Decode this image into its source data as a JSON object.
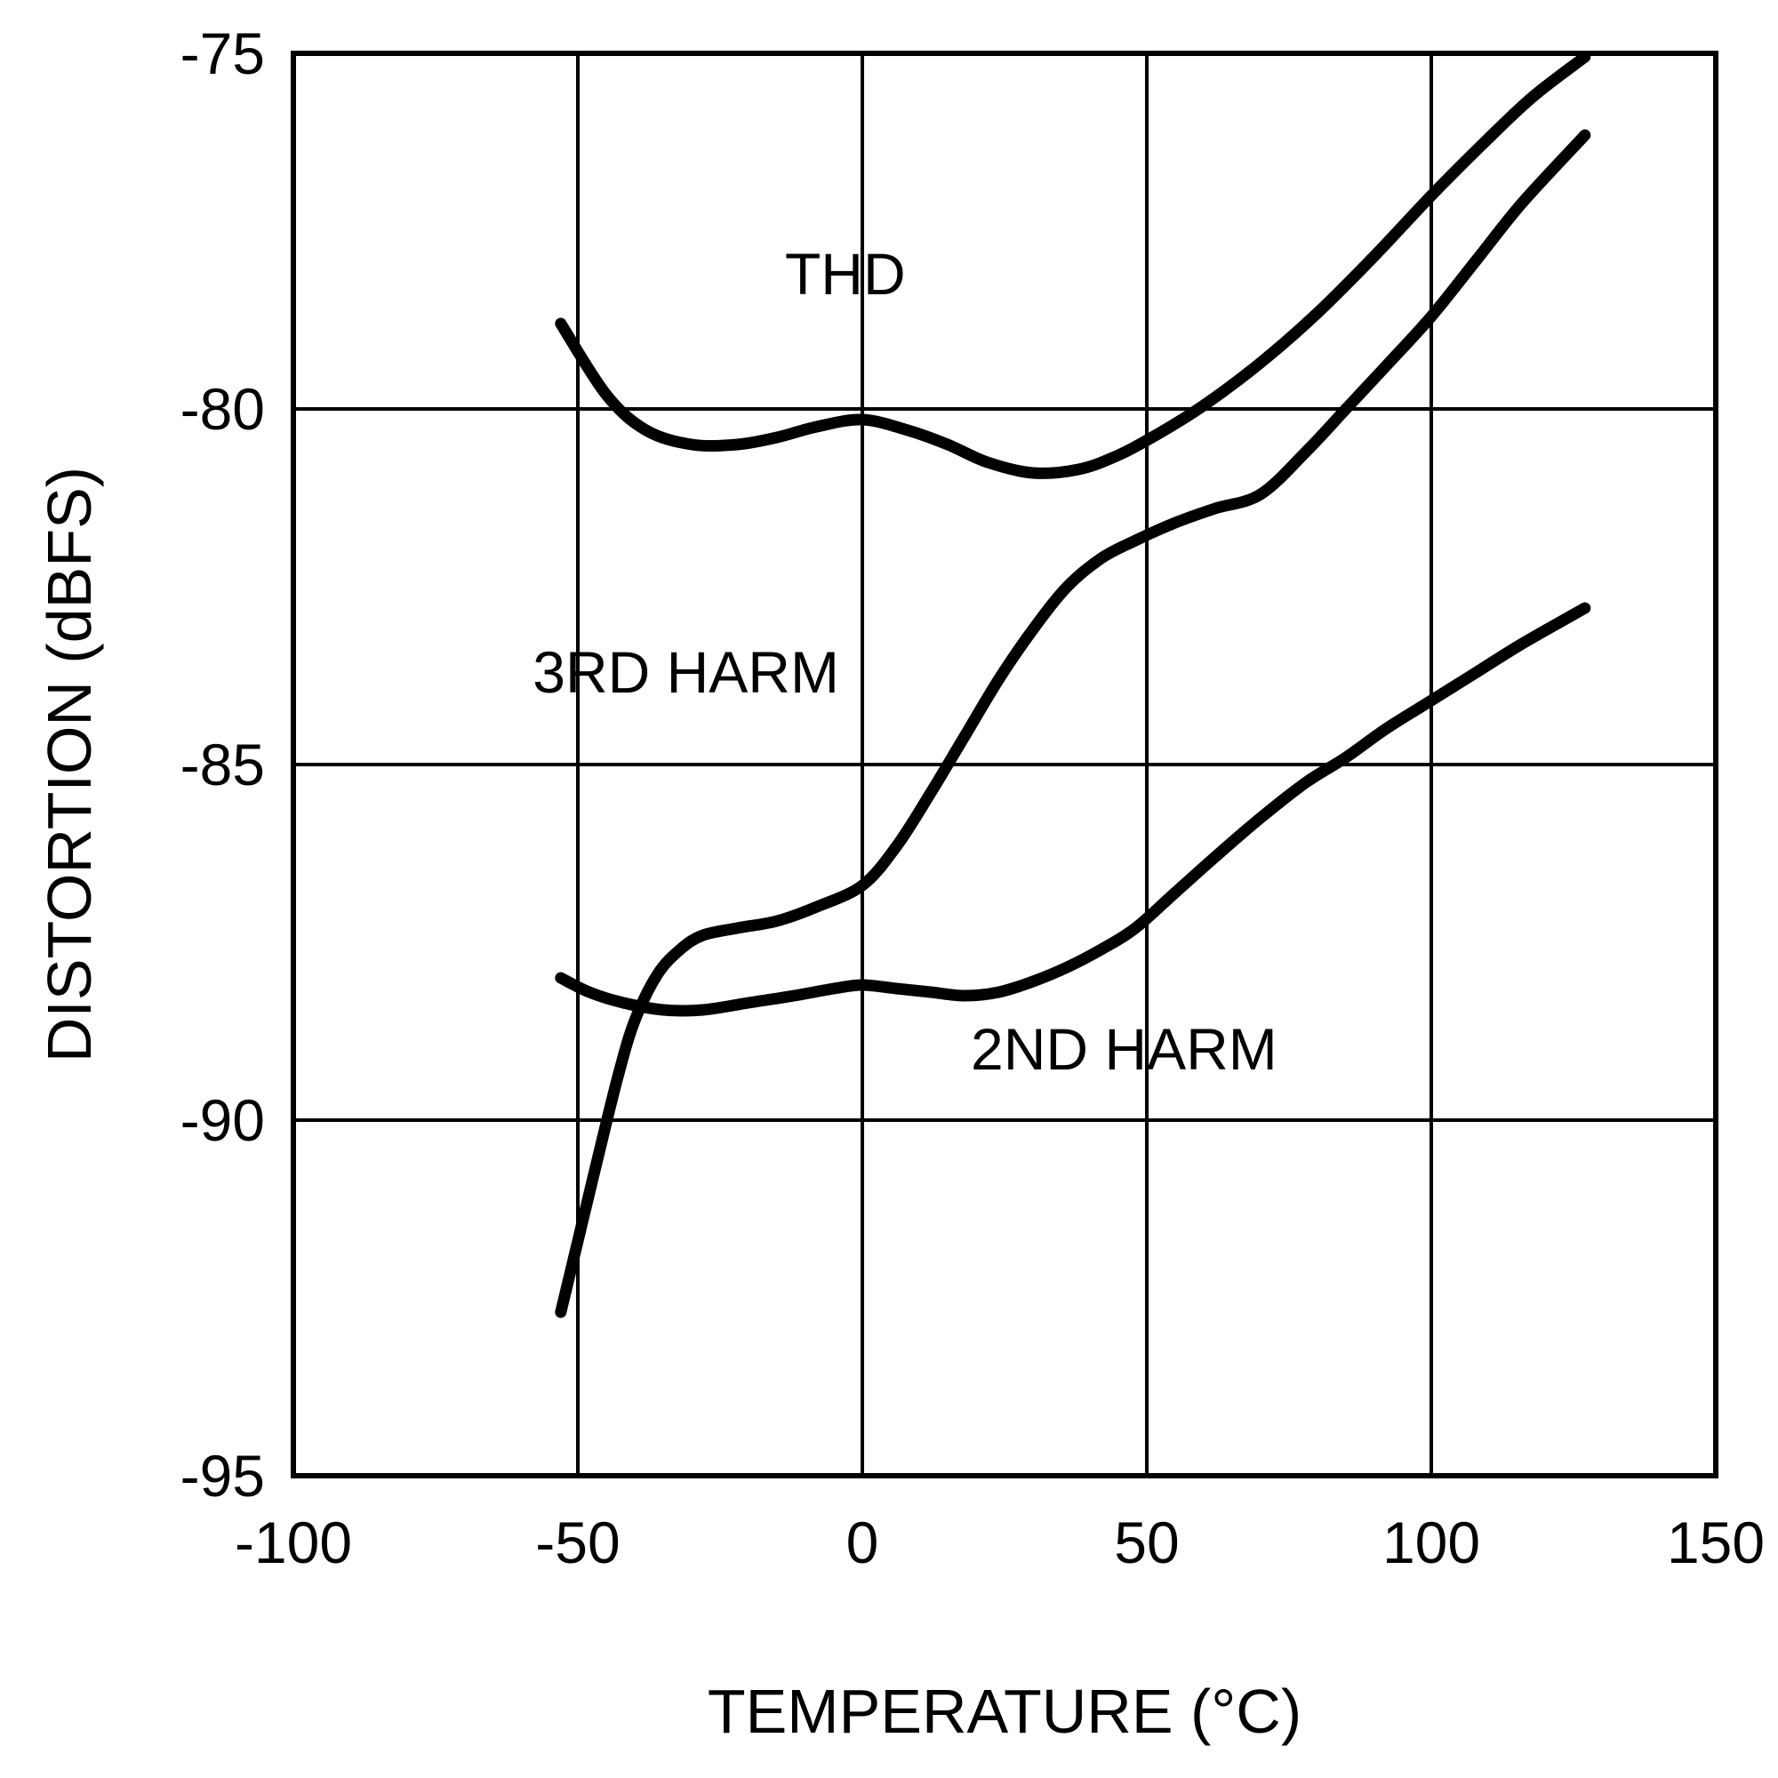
{
  "chart_data": {
    "type": "line",
    "title": "",
    "xlabel": "TEMPERATURE (°C)",
    "ylabel": "DISTORTION (dBFS)",
    "xlim": [
      -100,
      150
    ],
    "ylim": [
      -95,
      -75
    ],
    "x_ticks": [
      -100,
      -50,
      0,
      50,
      100,
      150
    ],
    "y_ticks": [
      -95,
      -90,
      -85,
      -80,
      -75
    ],
    "grid": true,
    "legend_position": "none (inline curve labels)",
    "line_color": "#000000",
    "background_color": "#ffffff",
    "series": [
      {
        "name": "THD",
        "label": {
          "text": "THD",
          "x": -3,
          "y": -78.1
        },
        "points": [
          [
            -53,
            -78.8
          ],
          [
            -45,
            -79.8
          ],
          [
            -38,
            -80.3
          ],
          [
            -30,
            -80.5
          ],
          [
            -22,
            -80.5
          ],
          [
            -15,
            -80.4
          ],
          [
            -8,
            -80.25
          ],
          [
            0,
            -80.15
          ],
          [
            8,
            -80.3
          ],
          [
            15,
            -80.5
          ],
          [
            22,
            -80.75
          ],
          [
            30,
            -80.9
          ],
          [
            38,
            -80.85
          ],
          [
            45,
            -80.65
          ],
          [
            52,
            -80.35
          ],
          [
            60,
            -79.95
          ],
          [
            70,
            -79.35
          ],
          [
            80,
            -78.65
          ],
          [
            90,
            -77.85
          ],
          [
            100,
            -77.0
          ],
          [
            110,
            -76.2
          ],
          [
            118,
            -75.6
          ],
          [
            127,
            -75.05
          ]
        ]
      },
      {
        "name": "3RD HARM",
        "label": {
          "text": "3RD HARM",
          "x": -31,
          "y": -83.7
        },
        "points": [
          [
            -53,
            -92.7
          ],
          [
            -50,
            -91.7
          ],
          [
            -47,
            -90.7
          ],
          [
            -43,
            -89.4
          ],
          [
            -40,
            -88.6
          ],
          [
            -36,
            -87.95
          ],
          [
            -32,
            -87.6
          ],
          [
            -28,
            -87.4
          ],
          [
            -22,
            -87.3
          ],
          [
            -15,
            -87.2
          ],
          [
            -8,
            -87.0
          ],
          [
            0,
            -86.7
          ],
          [
            6,
            -86.15
          ],
          [
            12,
            -85.4
          ],
          [
            18,
            -84.6
          ],
          [
            24,
            -83.8
          ],
          [
            30,
            -83.1
          ],
          [
            36,
            -82.5
          ],
          [
            42,
            -82.1
          ],
          [
            48,
            -81.85
          ],
          [
            55,
            -81.6
          ],
          [
            62,
            -81.4
          ],
          [
            70,
            -81.2
          ],
          [
            78,
            -80.6
          ],
          [
            85,
            -80.0
          ],
          [
            92,
            -79.4
          ],
          [
            100,
            -78.7
          ],
          [
            108,
            -77.9
          ],
          [
            116,
            -77.1
          ],
          [
            127,
            -76.15
          ]
        ]
      },
      {
        "name": "2ND HARM",
        "label": {
          "text": "2ND HARM",
          "x": 46,
          "y": -89.0
        },
        "points": [
          [
            -53,
            -88.0
          ],
          [
            -48,
            -88.2
          ],
          [
            -42,
            -88.35
          ],
          [
            -35,
            -88.45
          ],
          [
            -28,
            -88.45
          ],
          [
            -20,
            -88.35
          ],
          [
            -12,
            -88.25
          ],
          [
            -5,
            -88.15
          ],
          [
            0,
            -88.1
          ],
          [
            6,
            -88.15
          ],
          [
            12,
            -88.2
          ],
          [
            18,
            -88.25
          ],
          [
            24,
            -88.2
          ],
          [
            30,
            -88.05
          ],
          [
            36,
            -87.85
          ],
          [
            42,
            -87.6
          ],
          [
            48,
            -87.3
          ],
          [
            55,
            -86.8
          ],
          [
            62,
            -86.3
          ],
          [
            70,
            -85.75
          ],
          [
            78,
            -85.25
          ],
          [
            85,
            -84.9
          ],
          [
            92,
            -84.5
          ],
          [
            100,
            -84.1
          ],
          [
            108,
            -83.7
          ],
          [
            116,
            -83.3
          ],
          [
            127,
            -82.8
          ]
        ]
      }
    ]
  }
}
